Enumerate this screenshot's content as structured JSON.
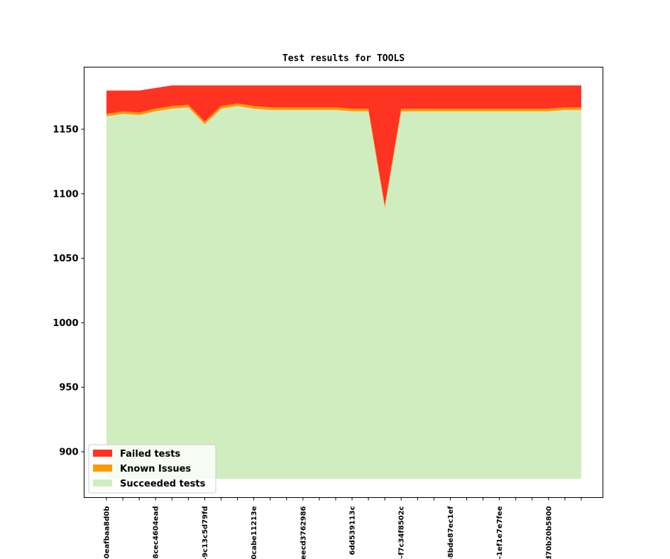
{
  "chart_data": {
    "type": "area",
    "title": "Test results for TOOLS",
    "xlabel": "",
    "ylabel": "",
    "ylim": [
      866,
      1195
    ],
    "yticks": [
      900,
      950,
      1000,
      1050,
      1100,
      1150
    ],
    "x_index": [
      0,
      1,
      2,
      3,
      4,
      5,
      6,
      7,
      8,
      9,
      10,
      11,
      12,
      13,
      14,
      15,
      16,
      17,
      18,
      19,
      20,
      21,
      22,
      23,
      24,
      25,
      26,
      27,
      28,
      29
    ],
    "xtick_positions": [
      0,
      3,
      6,
      9,
      12,
      15,
      18,
      21,
      24,
      27
    ],
    "xtick_labels": [
      "-0eafbaa8d0b",
      "-8cec4604ead",
      "-9c13c5d79fd",
      "0cabe11213e",
      "eecd3762986",
      "6dd539113c",
      "i-f7c34f8502c",
      "-8bde87ec1ef",
      "-1ef1e7e7fee",
      "d70b20b5800"
    ],
    "baseline": 879,
    "series": [
      {
        "name": "Succeeded tests",
        "color": "#d0edbf",
        "values": [
          1160,
          1162,
          1161,
          1164,
          1166,
          1167,
          1154,
          1166,
          1168,
          1166,
          1165,
          1165,
          1165,
          1165,
          1165,
          1164,
          1164,
          1089,
          1164,
          1164,
          1164,
          1164,
          1164,
          1164,
          1164,
          1164,
          1164,
          1164,
          1165,
          1165
        ]
      },
      {
        "name": "Known Issues",
        "color": "#ff9900",
        "values": [
          2,
          2,
          2,
          2,
          2,
          2,
          2,
          2,
          2,
          2,
          2,
          2,
          2,
          2,
          2,
          2,
          2,
          2,
          2,
          2,
          2,
          2,
          2,
          2,
          2,
          2,
          2,
          2,
          2,
          2
        ]
      },
      {
        "name": "Failed tests",
        "color": "#ff3322",
        "values": [
          18,
          16,
          17,
          16,
          16,
          15,
          28,
          16,
          14,
          16,
          17,
          17,
          17,
          17,
          17,
          18,
          18,
          93,
          18,
          18,
          18,
          18,
          18,
          18,
          18,
          18,
          18,
          18,
          17,
          17
        ]
      }
    ],
    "legend": {
      "placement": "lower-left",
      "entries": [
        "Failed tests",
        "Known Issues",
        "Succeeded tests"
      ]
    },
    "grid": false
  }
}
